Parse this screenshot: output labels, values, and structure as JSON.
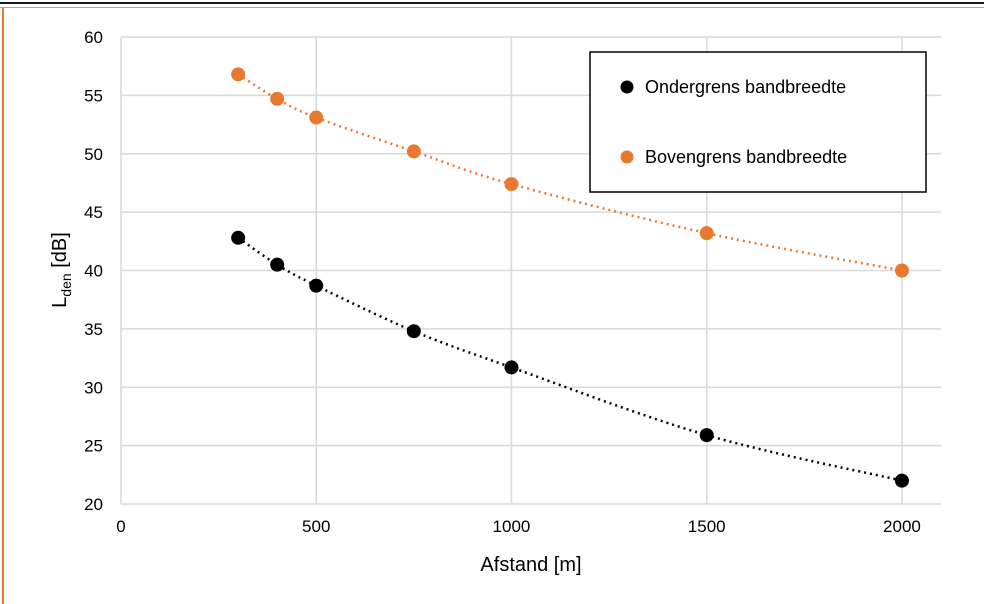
{
  "chart_data": {
    "type": "scatter",
    "title": "",
    "xlabel": "Afstand [m]",
    "ylabel": {
      "main": "L",
      "sub": "den",
      "unit": " [dB]"
    },
    "xlim": [
      0,
      2100
    ],
    "ylim": [
      20,
      60
    ],
    "xticks": [
      0,
      500,
      1000,
      1500,
      2000
    ],
    "yticks": [
      20,
      25,
      30,
      35,
      40,
      45,
      50,
      55,
      60
    ],
    "grid": true,
    "legend_position": "top-right",
    "trendline": "dotted",
    "series": [
      {
        "name": "Ondergrens bandbreedte",
        "color": "#000000",
        "x": [
          300,
          400,
          500,
          750,
          1000,
          1500,
          2000
        ],
        "y": [
          42.8,
          40.5,
          38.7,
          34.8,
          31.7,
          25.9,
          22.0
        ]
      },
      {
        "name": "Bovengrens bandbreedte",
        "color": "#e8792f",
        "x": [
          300,
          400,
          500,
          750,
          1000,
          1500,
          2000
        ],
        "y": [
          56.8,
          54.7,
          53.1,
          50.2,
          47.4,
          43.2,
          40.0
        ]
      }
    ]
  }
}
